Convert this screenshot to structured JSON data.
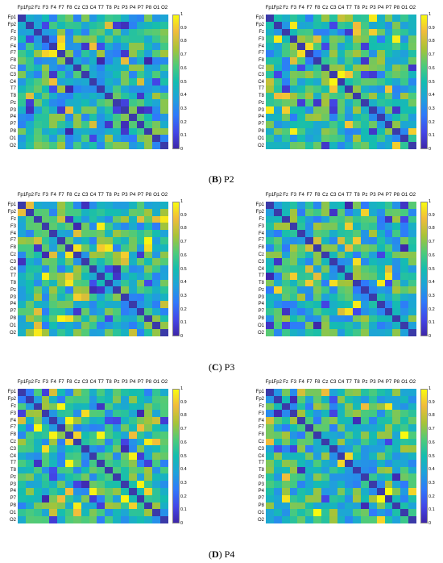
{
  "channels": [
    "Fp1",
    "Fp2",
    "Fz",
    "F3",
    "F4",
    "F7",
    "F8",
    "Cz",
    "C3",
    "C4",
    "T7",
    "T8",
    "Pz",
    "P3",
    "P4",
    "P7",
    "P8",
    "O1",
    "O2"
  ],
  "x_tick_labels": [
    "Fp1",
    "Fp2",
    "Fz",
    "F3",
    "F4",
    "F7",
    "F8",
    "Cz",
    "C3",
    "C4",
    "T7",
    "T8",
    "Pz",
    "P3",
    "P4",
    "P7",
    "P8",
    "O1",
    "O2"
  ],
  "colorbar_ticks": [
    "1",
    "0.9",
    "0.8",
    "0.7",
    "0.6",
    "0.5",
    "0.4",
    "0.3",
    "0.2",
    "0.1",
    "0"
  ],
  "captions": [
    {
      "letter": "B",
      "text": ") P2",
      "open": "("
    },
    {
      "letter": "C",
      "text": ") P3",
      "open": "("
    },
    {
      "letter": "D",
      "text": ") P4",
      "open": "("
    }
  ],
  "colors": {
    "low": "#3e26a8",
    "high": "#f9fb0e",
    "diagonal": "#3a3aa8"
  }
}
